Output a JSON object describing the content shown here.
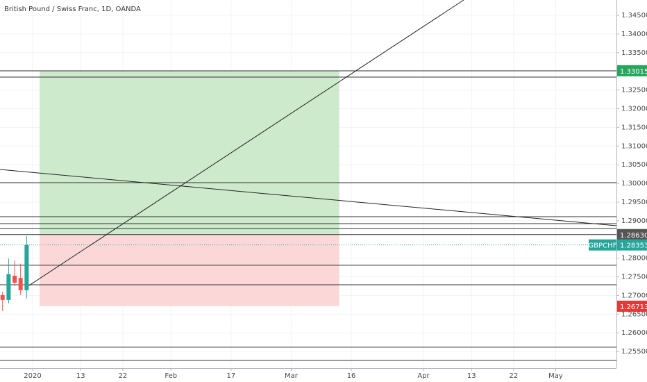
{
  "chart_data": {
    "type": "candlestick",
    "title": "British Pound / Swiss Franc, 1D, OANDA",
    "symbol": "GBPCHF",
    "x": [
      -5,
      -4,
      -3,
      -2,
      -1
    ],
    "open": [
      1.2701,
      1.2688,
      1.2753,
      1.2747,
      1.2714
    ],
    "high": [
      1.271,
      1.2799,
      1.2794,
      1.2785,
      1.2859
    ],
    "low": [
      1.2658,
      1.2679,
      1.2725,
      1.2701,
      1.2692
    ],
    "close": [
      1.2688,
      1.2757,
      1.2734,
      1.2714,
      1.28353
    ],
    "up_color": "#26a69a",
    "down_color": "#ef5350",
    "last_price": 1.28353,
    "last_price_color": "#26a69a",
    "position": {
      "start": 1.15,
      "end": 51.0,
      "entry": {
        "value": 1.2863,
        "label": "1.28630"
      },
      "target": 1.33015,
      "stop": 1.26713,
      "entry_color": "#555555",
      "target_color": "#26a65b",
      "stop_color": "#e53935",
      "profit_fill": "#cdeacc",
      "loss_fill": "#fbd7d8"
    },
    "horizontal_lines": [
      1.33013,
      1.32846,
      1.3002,
      1.29109,
      1.28923,
      1.28792,
      1.2863,
      1.27809,
      1.27288,
      1.25615,
      1.25262
    ],
    "trend_lines": [
      {
        "x": [
          -5.43,
          97.1
        ],
        "y": [
          1.30373,
          1.28867
        ]
      },
      {
        "x": [
          -0.58,
          71.7
        ],
        "y": [
          1.2727,
          1.34909
        ]
      }
    ],
    "xlim": [
      -5.43,
      97.1
    ],
    "ylim": [
      1.25056,
      1.34909
    ],
    "xticks": [
      {
        "value": 0,
        "label": "2020"
      },
      {
        "value": 8,
        "label": "13"
      },
      {
        "value": 15,
        "label": "22"
      },
      {
        "value": 23,
        "label": "Feb"
      },
      {
        "value": 33,
        "label": "17"
      },
      {
        "value": 43,
        "label": "Mar"
      },
      {
        "value": 53,
        "label": "16"
      },
      {
        "value": 65,
        "label": "Apr"
      },
      {
        "value": 73,
        "label": "13"
      },
      {
        "value": 80,
        "label": "22"
      },
      {
        "value": 87,
        "label": "May"
      }
    ],
    "yticks": [
      {
        "value": 1.345,
        "label": "1.34500"
      },
      {
        "value": 1.34,
        "label": "1.34000"
      },
      {
        "value": 1.335,
        "label": "1.33500"
      },
      {
        "value": 1.325,
        "label": "1.32500"
      },
      {
        "value": 1.32,
        "label": "1.32000"
      },
      {
        "value": 1.315,
        "label": "1.31500"
      },
      {
        "value": 1.31,
        "label": "1.31000"
      },
      {
        "value": 1.305,
        "label": "1.30500"
      },
      {
        "value": 1.3,
        "label": "1.30000"
      },
      {
        "value": 1.295,
        "label": "1.29500"
      },
      {
        "value": 1.29,
        "label": "1.29000"
      },
      {
        "value": 1.28,
        "label": "1.28000"
      },
      {
        "value": 1.275,
        "label": "1.27500"
      },
      {
        "value": 1.27,
        "label": "1.27000"
      },
      {
        "value": 1.265,
        "label": "1.26500"
      },
      {
        "value": 1.26,
        "label": "1.26000"
      },
      {
        "value": 1.255,
        "label": "1.25500"
      }
    ],
    "grid": true
  }
}
